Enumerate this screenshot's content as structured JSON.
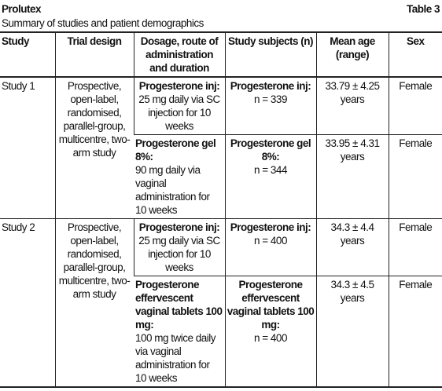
{
  "header": {
    "title": "Prolutex",
    "table_number": "Table 3",
    "subtitle": "Summary of studies and patient demographics"
  },
  "table": {
    "columns": [
      "Study",
      "Trial design",
      "Dosage, route of administration and duration",
      "Study subjects (n)",
      "Mean age (range)",
      "Sex"
    ],
    "studies": [
      {
        "study": "Study 1",
        "design": "Prospective, open-label, randomised, parallel-group, multicentre, two-arm study",
        "arms": [
          {
            "dosage_label": "Progesterone inj:",
            "dosage_text": "25 mg daily via SC injection for 10 weeks",
            "subjects_label": "Progesterone inj:",
            "subjects_text": "n = 339",
            "age": "33.79 ± 4.25 years",
            "sex": "Female"
          },
          {
            "dosage_label": "Progesterone gel 8%:",
            "dosage_text": "90 mg daily via vaginal administration for 10 weeks",
            "subjects_label": "Progesterone gel 8%:",
            "subjects_text": "n = 344",
            "age": "33.95 ± 4.31 years",
            "sex": "Female"
          }
        ]
      },
      {
        "study": "Study 2",
        "design": "Prospective, open-label, randomised, parallel-group, multicentre, two-arm study",
        "arms": [
          {
            "dosage_label": "Progesterone inj:",
            "dosage_text": "25 mg daily via SC injection for 10 weeks",
            "subjects_label": "Progesterone inj:",
            "subjects_text": "n = 400",
            "age": "34.3 ± 4.4 years",
            "sex": "Female"
          },
          {
            "dosage_label": "Progesterone effervescent vaginal tablets 100 mg:",
            "dosage_text": "100 mg twice daily via vaginal administration for 10 weeks",
            "subjects_label": "Progesterone effervescent vaginal tablets 100 mg:",
            "subjects_text": "n = 400",
            "age": "34.3 ± 4.5 years",
            "sex": "Female"
          }
        ]
      }
    ]
  }
}
